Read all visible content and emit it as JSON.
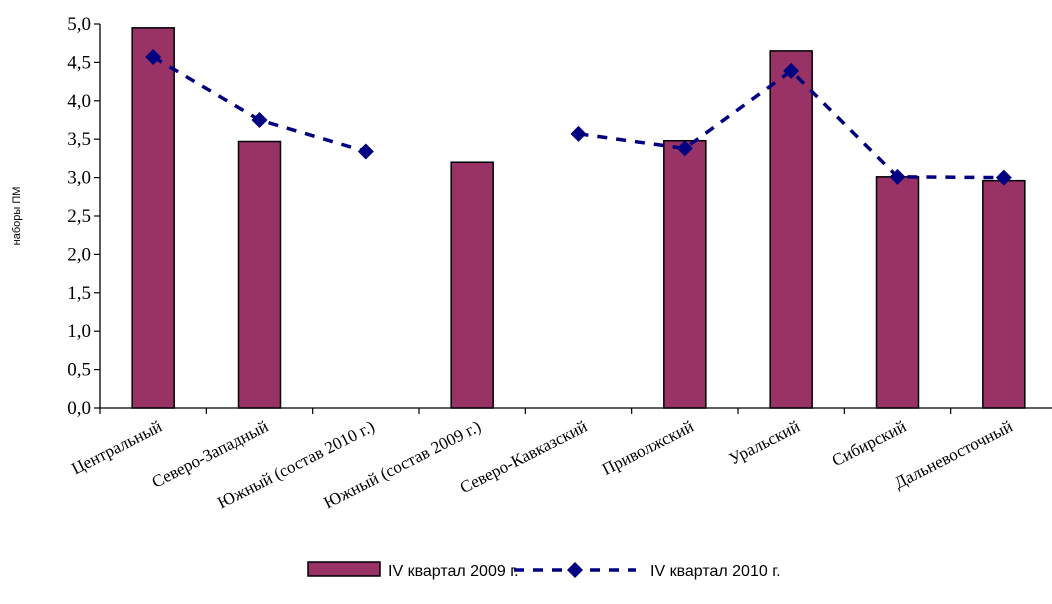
{
  "chart_data": {
    "type": "bar",
    "categories": [
      "Центральный",
      "Северо-Западный",
      "Южный (состав 2010 г.)",
      "Южный (состав 2009 г.)",
      "Северо-Кавказский",
      "Приволжский",
      "Уральский",
      "Сибирский",
      "Дальневосточный"
    ],
    "series": [
      {
        "name": "IV квартал 2009 г.",
        "type": "bar",
        "color": "#993366",
        "values": [
          4.95,
          3.47,
          null,
          3.2,
          null,
          3.48,
          4.65,
          3.01,
          2.96
        ]
      },
      {
        "name": "IV квартал 2010 г.",
        "type": "line",
        "style": "dashed",
        "marker": "diamond",
        "color": "#000080",
        "values": [
          4.57,
          3.75,
          3.34,
          null,
          3.57,
          3.38,
          4.39,
          3.01,
          3.0
        ]
      }
    ],
    "ylabel": "наборы ПМ",
    "xlabel": "",
    "title": "",
    "ylim": [
      0,
      5
    ],
    "ytick_step": 0.5,
    "ytick_labels": [
      "0,0",
      "0,5",
      "1,0",
      "1,5",
      "2,0",
      "2,5",
      "3,0",
      "3,5",
      "4,0",
      "4,5",
      "5,0"
    ],
    "grid": false,
    "legend": "bottom-center"
  }
}
